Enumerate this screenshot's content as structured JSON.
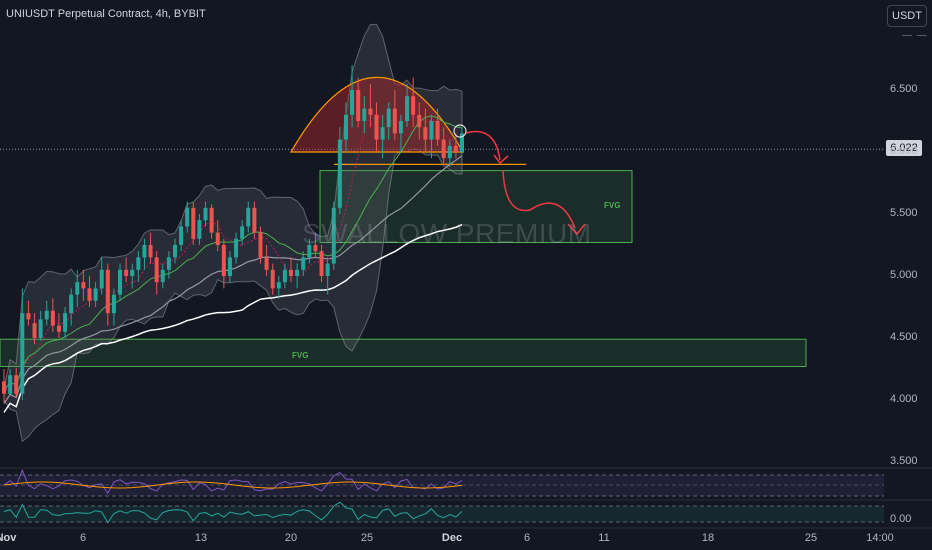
{
  "header": {
    "title": "UNIUSDT Perpetual Contract, 4h, BYBIT",
    "currency": "USDT",
    "menu_icon": "more-dots-icon"
  },
  "watermark": "SWALLOW PREMIUM",
  "last_price": "6.022",
  "y_ticks": [
    "6.500",
    "6.000",
    "5.500",
    "5.000",
    "4.500",
    "4.000",
    "3.500"
  ],
  "x_ticks": [
    "Nov",
    "6",
    "13",
    "20",
    "25",
    "Dec",
    "6",
    "11",
    "18",
    "25",
    "14:00"
  ],
  "x_ticks_bold": [
    "Nov",
    "Dec"
  ],
  "osc_tick": "0.00",
  "zones": [
    {
      "label": "FVG",
      "low": 5.27,
      "high": 5.85,
      "color": "#4caf50"
    },
    {
      "label": "FVG",
      "low": 4.27,
      "high": 4.49,
      "color": "#4caf50"
    }
  ],
  "colors": {
    "background": "#131722",
    "up": "#26a69a",
    "down": "#ef5350",
    "ma_white": "#ffffff",
    "ma_grey": "#9598a1",
    "ma_green": "#4caf50",
    "pattern_fill": "#8b2e2e",
    "pattern_stroke": "#ff9800",
    "projection": "#f23645"
  },
  "chart_data": {
    "type": "candlestick",
    "title": "UNIUSDT Perpetual Contract, 4h, BYBIT",
    "ylim": [
      3.3,
      7.05
    ],
    "y_scale": "linear",
    "grid": false,
    "last_price": 6.022,
    "candles_ohlc": [
      [
        4.15,
        4.25,
        3.98,
        4.05
      ],
      [
        4.05,
        4.25,
        4.05,
        4.2
      ],
      [
        4.2,
        4.26,
        4.03,
        4.05
      ],
      [
        4.05,
        4.9,
        4.0,
        4.7
      ],
      [
        4.7,
        4.8,
        4.6,
        4.65
      ],
      [
        4.62,
        4.7,
        4.45,
        4.5
      ],
      [
        4.5,
        4.72,
        4.48,
        4.65
      ],
      [
        4.65,
        4.8,
        4.6,
        4.72
      ],
      [
        4.72,
        4.82,
        4.55,
        4.6
      ],
      [
        4.6,
        4.7,
        4.5,
        4.55
      ],
      [
        4.55,
        4.75,
        4.5,
        4.7
      ],
      [
        4.7,
        4.9,
        4.6,
        4.85
      ],
      [
        4.85,
        5.05,
        4.75,
        4.95
      ],
      [
        4.95,
        5.05,
        4.8,
        4.9
      ],
      [
        4.9,
        5.0,
        4.75,
        4.8
      ],
      [
        4.8,
        4.95,
        4.75,
        4.9
      ],
      [
        4.9,
        5.15,
        4.85,
        5.05
      ],
      [
        5.05,
        5.1,
        4.6,
        4.7
      ],
      [
        4.7,
        4.9,
        4.6,
        4.85
      ],
      [
        4.85,
        5.1,
        4.8,
        5.05
      ],
      [
        5.05,
        5.15,
        4.95,
        5.0
      ],
      [
        5.0,
        5.1,
        4.9,
        5.05
      ],
      [
        5.05,
        5.2,
        4.95,
        5.15
      ],
      [
        5.15,
        5.3,
        5.05,
        5.25
      ],
      [
        5.25,
        5.35,
        5.1,
        5.15
      ],
      [
        5.15,
        5.2,
        4.85,
        4.95
      ],
      [
        4.95,
        5.1,
        4.9,
        5.05
      ],
      [
        5.05,
        5.2,
        4.98,
        5.15
      ],
      [
        5.15,
        5.3,
        5.1,
        5.25
      ],
      [
        5.25,
        5.45,
        5.2,
        5.4
      ],
      [
        5.4,
        5.6,
        5.35,
        5.55
      ],
      [
        5.55,
        5.6,
        5.25,
        5.3
      ],
      [
        5.3,
        5.5,
        5.25,
        5.45
      ],
      [
        5.45,
        5.6,
        5.4,
        5.55
      ],
      [
        5.55,
        5.58,
        5.3,
        5.35
      ],
      [
        5.35,
        5.45,
        5.2,
        5.25
      ],
      [
        5.25,
        5.3,
        4.9,
        5.0
      ],
      [
        5.0,
        5.2,
        4.95,
        5.15
      ],
      [
        5.15,
        5.35,
        5.1,
        5.3
      ],
      [
        5.3,
        5.45,
        5.25,
        5.4
      ],
      [
        5.4,
        5.6,
        5.35,
        5.55
      ],
      [
        5.55,
        5.6,
        5.3,
        5.35
      ],
      [
        5.35,
        5.4,
        5.1,
        5.15
      ],
      [
        5.15,
        5.25,
        5.0,
        5.05
      ],
      [
        5.05,
        5.1,
        4.85,
        4.9
      ],
      [
        4.9,
        5.0,
        4.82,
        4.95
      ],
      [
        4.95,
        5.1,
        4.9,
        5.05
      ],
      [
        5.05,
        5.15,
        4.95,
        5.0
      ],
      [
        5.0,
        5.1,
        4.9,
        5.05
      ],
      [
        5.05,
        5.2,
        5.0,
        5.15
      ],
      [
        5.15,
        5.3,
        5.1,
        5.25
      ],
      [
        5.25,
        5.35,
        5.15,
        5.2
      ],
      [
        5.2,
        5.25,
        4.95,
        5.0
      ],
      [
        5.0,
        5.15,
        4.85,
        5.1
      ],
      [
        5.1,
        5.6,
        5.05,
        5.55
      ],
      [
        5.55,
        6.2,
        5.5,
        6.1
      ],
      [
        6.1,
        6.4,
        6.0,
        6.3
      ],
      [
        6.3,
        6.7,
        6.2,
        6.5
      ],
      [
        6.5,
        6.6,
        6.2,
        6.25
      ],
      [
        6.25,
        6.45,
        6.15,
        6.35
      ],
      [
        6.35,
        6.55,
        6.2,
        6.3
      ],
      [
        6.3,
        6.4,
        6.0,
        6.1
      ],
      [
        6.1,
        6.3,
        5.95,
        6.2
      ],
      [
        6.2,
        6.4,
        6.1,
        6.35
      ],
      [
        6.35,
        6.5,
        6.1,
        6.15
      ],
      [
        6.15,
        6.3,
        6.0,
        6.25
      ],
      [
        6.25,
        6.55,
        6.2,
        6.45
      ],
      [
        6.45,
        6.6,
        6.2,
        6.3
      ],
      [
        6.3,
        6.4,
        6.1,
        6.2
      ],
      [
        6.2,
        6.35,
        6.0,
        6.1
      ],
      [
        6.1,
        6.3,
        5.95,
        6.25
      ],
      [
        6.25,
        6.35,
        6.05,
        6.1
      ],
      [
        6.1,
        6.2,
        5.9,
        5.95
      ],
      [
        5.95,
        6.1,
        5.88,
        6.05
      ],
      [
        6.05,
        6.15,
        5.95,
        6.0
      ],
      [
        6.0,
        6.2,
        5.98,
        6.15
      ]
    ],
    "x_start_label": "Nov",
    "annotations": [
      "FVG",
      "FVG",
      "SWALLOW PREMIUM"
    ]
  }
}
